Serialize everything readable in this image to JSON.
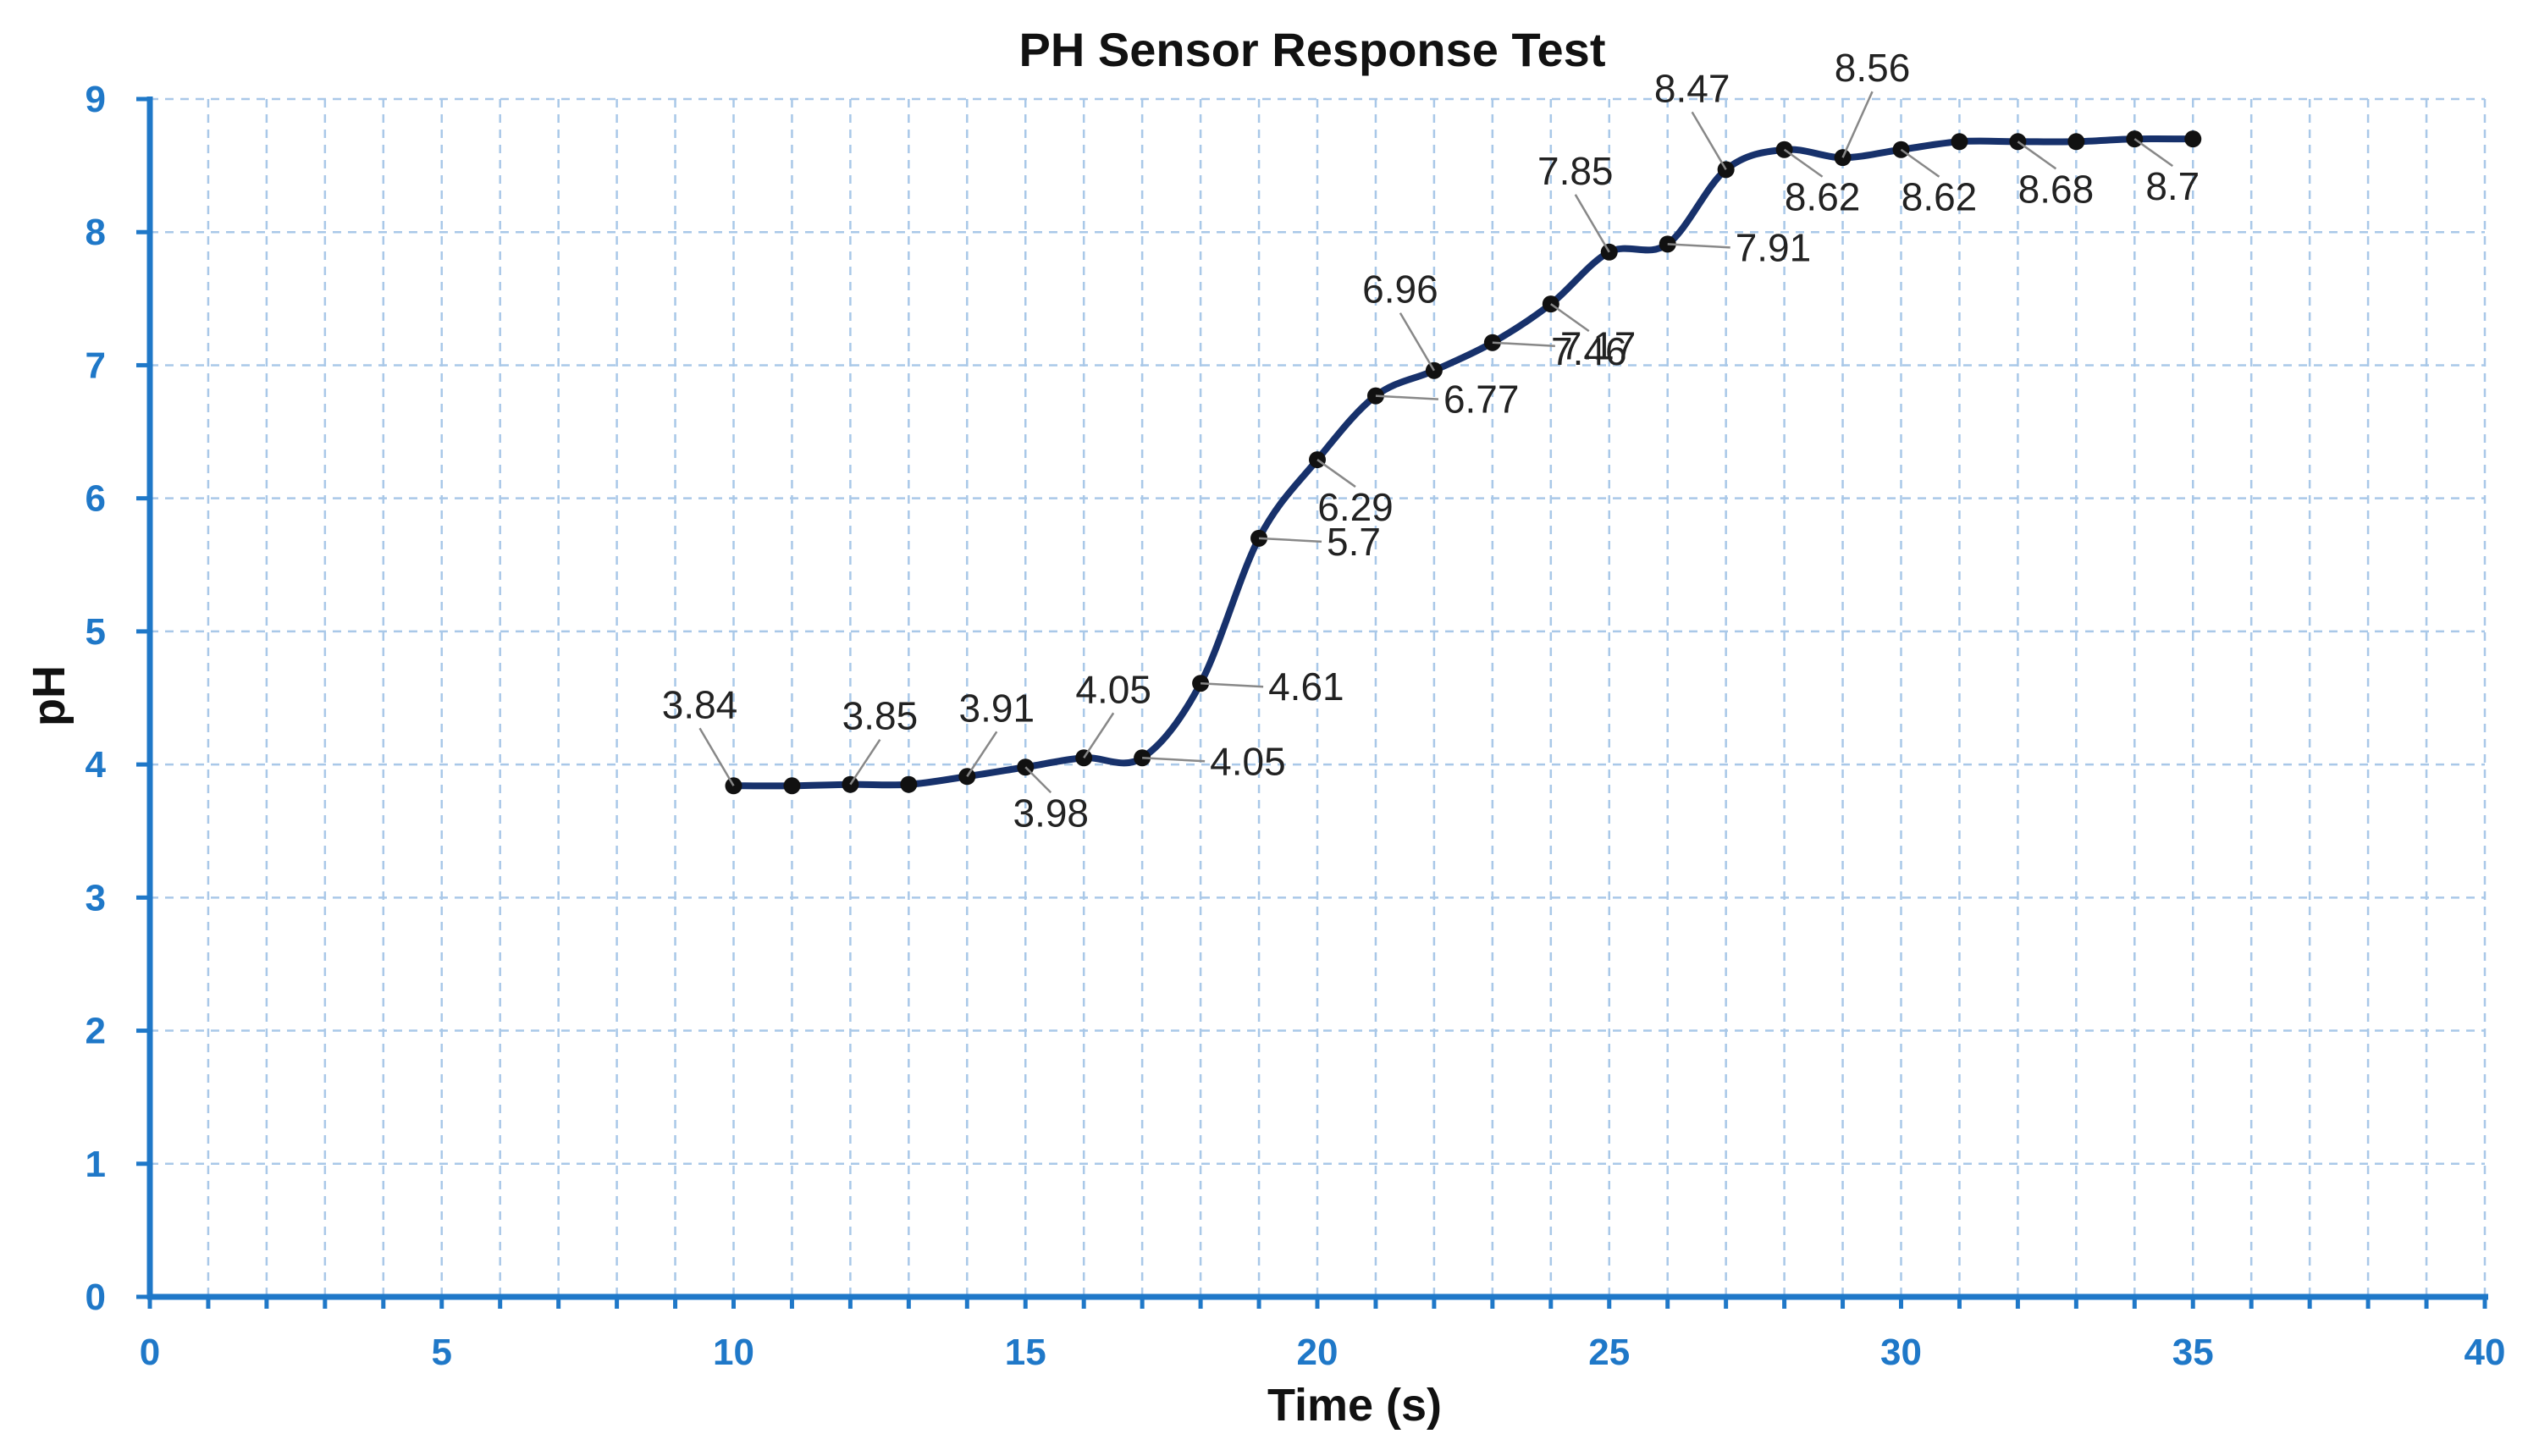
{
  "chart_data": {
    "type": "line",
    "title": "PH Sensor Response Test",
    "xlabel": "Time (s)",
    "ylabel": "pH",
    "xlim": [
      0,
      40
    ],
    "ylim": [
      0,
      9
    ],
    "x_ticks": [
      "0",
      "5",
      "10",
      "15",
      "20",
      "25",
      "30",
      "35",
      "40"
    ],
    "y_ticks": [
      "0",
      "1",
      "2",
      "3",
      "4",
      "5",
      "6",
      "7",
      "8",
      "9"
    ],
    "grid": true,
    "series": [
      {
        "name": "pH",
        "color": "#17316b",
        "x": [
          10,
          11,
          12,
          13,
          14,
          15,
          16,
          17,
          18,
          19,
          20,
          21,
          22,
          23,
          24,
          25,
          26,
          27,
          28,
          29,
          30,
          31,
          32,
          33,
          34,
          35
        ],
        "values": [
          3.84,
          3.84,
          3.85,
          3.85,
          3.91,
          3.98,
          4.05,
          4.05,
          4.61,
          5.7,
          6.29,
          6.77,
          6.96,
          7.17,
          7.46,
          7.85,
          7.91,
          8.47,
          8.62,
          8.56,
          8.62,
          8.68,
          8.68,
          8.68,
          8.7,
          8.7
        ]
      }
    ],
    "data_labels": [
      {
        "text": "3.84",
        "x": 10,
        "y": 3.84,
        "pos": "above-left"
      },
      {
        "text": "3.85",
        "x": 12,
        "y": 3.85,
        "pos": "above-right"
      },
      {
        "text": "3.91",
        "x": 14,
        "y": 3.91,
        "pos": "above-right"
      },
      {
        "text": "3.98",
        "x": 15,
        "y": 3.98,
        "pos": "below"
      },
      {
        "text": "4.05",
        "x": 16,
        "y": 4.05,
        "pos": "above-right"
      },
      {
        "text": "4.05",
        "x": 17,
        "y": 4.05,
        "pos": "right"
      },
      {
        "text": "4.61",
        "x": 18,
        "y": 4.61,
        "pos": "right"
      },
      {
        "text": "5.7",
        "x": 19,
        "y": 5.7,
        "pos": "right"
      },
      {
        "text": "6.29",
        "x": 20,
        "y": 6.29,
        "pos": "below-right"
      },
      {
        "text": "6.77",
        "x": 21,
        "y": 6.77,
        "pos": "right"
      },
      {
        "text": "6.96",
        "x": 22,
        "y": 6.96,
        "pos": "above-left"
      },
      {
        "text": "7.17",
        "x": 23,
        "y": 7.17,
        "pos": "right"
      },
      {
        "text": "7.46",
        "x": 24,
        "y": 7.46,
        "pos": "below-right"
      },
      {
        "text": "7.85",
        "x": 25,
        "y": 7.85,
        "pos": "above-left"
      },
      {
        "text": "7.91",
        "x": 26,
        "y": 7.91,
        "pos": "right"
      },
      {
        "text": "8.47",
        "x": 27,
        "y": 8.47,
        "pos": "above-left"
      },
      {
        "text": "8.62",
        "x": 28,
        "y": 8.62,
        "pos": "below-right"
      },
      {
        "text": "8.56",
        "x": 29,
        "y": 8.56,
        "pos": "above"
      },
      {
        "text": "8.62",
        "x": 30,
        "y": 8.62,
        "pos": "below-right"
      },
      {
        "text": "8.68",
        "x": 32,
        "y": 8.68,
        "pos": "below-right"
      },
      {
        "text": "8.7",
        "x": 34,
        "y": 8.7,
        "pos": "below-right"
      }
    ]
  }
}
